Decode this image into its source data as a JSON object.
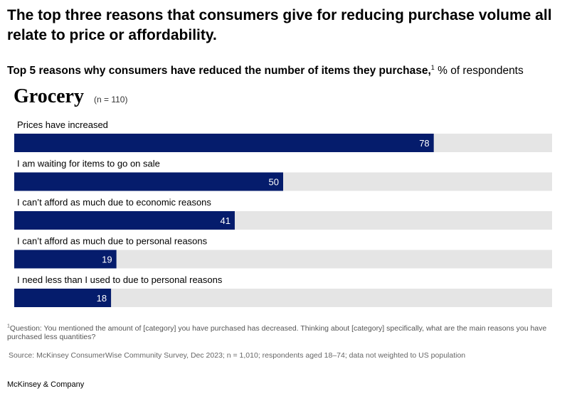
{
  "headline": "The top three reasons that consumers give for reducing purchase volume all relate to price or affordability.",
  "subtitle": {
    "bold": "Top 5 reasons why consumers have reduced the number of items they purchase,",
    "sup": "1",
    "unit": "% of respondents"
  },
  "panel": {
    "title": "Grocery",
    "n": "(n = 110)"
  },
  "chart_data": {
    "type": "bar",
    "orientation": "horizontal",
    "categories": [
      "Prices have increased",
      "I am waiting for items to go on sale",
      "I can’t afford as much due to economic reasons",
      "I can’t afford as much due to personal reasons",
      "I need less than I used to due to personal reasons"
    ],
    "values": [
      78,
      50,
      41,
      19,
      18
    ],
    "xlim": [
      0,
      100
    ],
    "grid": false,
    "colors": {
      "bar": "#051c6c",
      "track": "#e5e5e5",
      "value_label": "#ffffff"
    }
  },
  "footnote": {
    "sup": "1",
    "text": "Question: You mentioned the amount of [category] you have purchased has decreased. Thinking about [category] specifically, what are the main reasons you have purchased less quantities?"
  },
  "source": "Source: McKinsey ConsumerWise Community Survey, Dec 2023; n = 1,010; respondents aged 18–74; data not weighted to US population",
  "brand": "McKinsey & Company"
}
